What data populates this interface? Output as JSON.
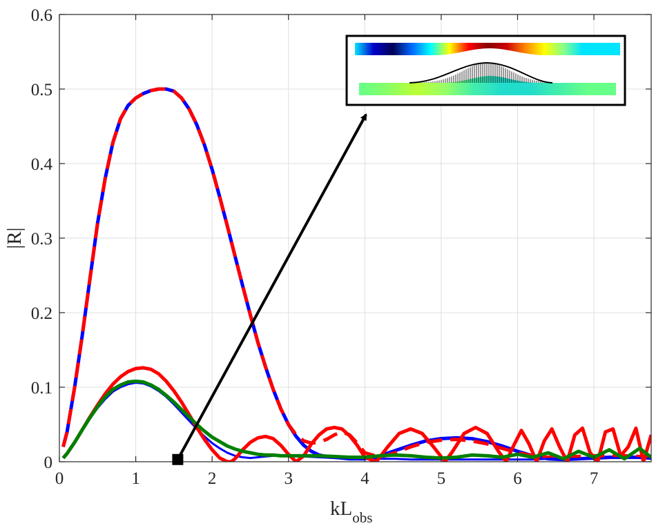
{
  "chart_data": {
    "type": "line",
    "title": "",
    "xlabel": "kL",
    "xlabel_subscript": "obs",
    "ylabel": "|R|",
    "xlim": [
      0,
      7.75
    ],
    "ylim": [
      0,
      0.6
    ],
    "xticks": [
      0,
      1,
      2,
      3,
      4,
      5,
      6,
      7
    ],
    "yticks": [
      0,
      0.1,
      0.2,
      0.3,
      0.4,
      0.5,
      0.6
    ],
    "xtick_labels": [
      "0",
      "1",
      "2",
      "3",
      "4",
      "5",
      "6",
      "7"
    ],
    "ytick_labels": [
      "0",
      "0.1",
      "0.2",
      "0.3",
      "0.4",
      "0.5",
      "0.6"
    ],
    "grid": true,
    "legend": "none",
    "series": [
      {
        "style": "dashed-blue-underlay",
        "color": "#0000ff",
        "x": [
          0.05,
          0.1,
          0.2,
          0.3,
          0.4,
          0.5,
          0.6,
          0.7,
          0.8,
          0.9,
          1.0,
          1.1,
          1.2,
          1.3,
          1.4,
          1.5,
          1.6,
          1.7,
          1.8,
          1.9,
          2.0,
          2.1,
          2.2,
          2.3,
          2.4,
          2.5,
          2.6,
          2.7,
          2.8,
          2.9,
          3.0,
          3.1,
          3.2,
          3.3,
          3.4,
          3.5,
          3.6,
          3.7,
          3.8,
          3.9,
          4.0,
          4.2,
          4.4,
          4.6,
          4.8,
          5.0,
          5.2,
          5.4,
          5.6,
          5.8,
          6.0,
          6.2,
          6.4,
          6.6,
          6.8,
          7.0,
          7.2,
          7.4,
          7.6,
          7.75
        ],
        "y": [
          0.02,
          0.04,
          0.1,
          0.17,
          0.245,
          0.32,
          0.38,
          0.428,
          0.46,
          0.478,
          0.488,
          0.494,
          0.498,
          0.5,
          0.5,
          0.497,
          0.488,
          0.473,
          0.452,
          0.425,
          0.392,
          0.355,
          0.316,
          0.276,
          0.236,
          0.197,
          0.16,
          0.127,
          0.097,
          0.071,
          0.05,
          0.034,
          0.022,
          0.014,
          0.009,
          0.007,
          0.006,
          0.005,
          0.004,
          0.004,
          0.004,
          0.008,
          0.015,
          0.022,
          0.028,
          0.031,
          0.032,
          0.031,
          0.027,
          0.021,
          0.014,
          0.008,
          0.004,
          0.003,
          0.004,
          0.005,
          0.006,
          0.006,
          0.006,
          0.005
        ]
      },
      {
        "style": "dashed",
        "color": "#ff0000",
        "x": [
          0.05,
          0.1,
          0.2,
          0.3,
          0.4,
          0.5,
          0.6,
          0.7,
          0.8,
          0.9,
          1.0,
          1.1,
          1.2,
          1.3,
          1.4,
          1.5,
          1.6,
          1.7,
          1.8,
          1.9,
          2.0,
          2.1,
          2.2,
          2.3,
          2.4,
          2.5,
          2.6,
          2.7,
          2.8,
          2.9,
          3.0,
          3.1,
          3.2,
          3.3,
          3.4,
          3.5,
          3.6,
          3.7,
          3.8,
          3.9,
          4.0,
          4.2,
          4.4,
          4.6,
          4.8,
          5.0,
          5.2,
          5.4,
          5.6,
          5.8,
          6.0,
          6.2,
          6.4,
          6.6,
          6.8,
          7.0,
          7.2,
          7.4,
          7.6,
          7.75
        ],
        "y": [
          0.02,
          0.04,
          0.1,
          0.17,
          0.245,
          0.32,
          0.38,
          0.428,
          0.46,
          0.478,
          0.488,
          0.494,
          0.498,
          0.5,
          0.5,
          0.497,
          0.488,
          0.473,
          0.452,
          0.425,
          0.392,
          0.355,
          0.316,
          0.276,
          0.236,
          0.197,
          0.16,
          0.127,
          0.097,
          0.071,
          0.05,
          0.036,
          0.028,
          0.025,
          0.026,
          0.03,
          0.036,
          0.04,
          0.036,
          0.025,
          0.012,
          0.006,
          0.012,
          0.02,
          0.026,
          0.029,
          0.03,
          0.028,
          0.024,
          0.018,
          0.012,
          0.008,
          0.006,
          0.006,
          0.007,
          0.008,
          0.008,
          0.008,
          0.007,
          0.006
        ]
      },
      {
        "style": "solid",
        "color": "#0000ff",
        "x": [
          0.05,
          0.1,
          0.2,
          0.3,
          0.4,
          0.5,
          0.6,
          0.7,
          0.8,
          0.9,
          1.0,
          1.1,
          1.2,
          1.3,
          1.4,
          1.5,
          1.6,
          1.7,
          1.8,
          1.9,
          2.0,
          2.1,
          2.2,
          2.3,
          2.4,
          2.5,
          2.6,
          2.7,
          2.8,
          2.9,
          3.0,
          3.2,
          3.4,
          3.6,
          3.8,
          4.0,
          4.2,
          4.4,
          4.6,
          4.8,
          5.0,
          5.2,
          5.4,
          5.6,
          5.8,
          6.0,
          6.2,
          6.4,
          6.6,
          6.8,
          7.0,
          7.2,
          7.4,
          7.6,
          7.75
        ],
        "y": [
          0.005,
          0.011,
          0.026,
          0.042,
          0.058,
          0.072,
          0.084,
          0.094,
          0.1,
          0.104,
          0.106,
          0.105,
          0.101,
          0.095,
          0.087,
          0.077,
          0.066,
          0.055,
          0.044,
          0.034,
          0.025,
          0.018,
          0.012,
          0.008,
          0.006,
          0.005,
          0.006,
          0.007,
          0.008,
          0.008,
          0.008,
          0.007,
          0.006,
          0.005,
          0.004,
          0.004,
          0.004,
          0.004,
          0.003,
          0.003,
          0.003,
          0.003,
          0.003,
          0.003,
          0.003,
          0.003,
          0.003,
          0.004,
          0.004,
          0.004,
          0.004,
          0.005,
          0.005,
          0.005,
          0.004
        ]
      },
      {
        "style": "solid",
        "color": "#ff0000",
        "x": [
          0.05,
          0.1,
          0.2,
          0.3,
          0.4,
          0.5,
          0.6,
          0.7,
          0.8,
          0.9,
          1.0,
          1.1,
          1.2,
          1.3,
          1.4,
          1.5,
          1.6,
          1.7,
          1.8,
          1.9,
          2.0,
          2.1,
          2.2,
          2.25,
          2.3,
          2.4,
          2.5,
          2.6,
          2.7,
          2.8,
          2.9,
          3.0,
          3.1,
          3.2,
          3.3,
          3.4,
          3.5,
          3.6,
          3.7,
          3.8,
          3.9,
          4.0,
          4.15,
          4.3,
          4.45,
          4.6,
          4.75,
          4.9,
          5.05,
          5.15,
          5.3,
          5.45,
          5.6,
          5.75,
          5.85,
          5.95,
          6.05,
          6.15,
          6.25,
          6.35,
          6.45,
          6.55,
          6.65,
          6.75,
          6.85,
          6.95,
          7.05,
          7.15,
          7.25,
          7.35,
          7.45,
          7.55,
          7.65,
          7.75
        ],
        "y": [
          0.005,
          0.011,
          0.026,
          0.043,
          0.06,
          0.076,
          0.091,
          0.104,
          0.114,
          0.121,
          0.125,
          0.126,
          0.124,
          0.118,
          0.108,
          0.095,
          0.08,
          0.063,
          0.046,
          0.03,
          0.016,
          0.005,
          0.0,
          0.0,
          0.004,
          0.016,
          0.026,
          0.032,
          0.034,
          0.031,
          0.022,
          0.01,
          0.0,
          0.008,
          0.024,
          0.036,
          0.044,
          0.046,
          0.044,
          0.035,
          0.022,
          0.006,
          0.0,
          0.02,
          0.038,
          0.044,
          0.038,
          0.02,
          0.0,
          0.014,
          0.038,
          0.046,
          0.038,
          0.014,
          0.0,
          0.022,
          0.042,
          0.024,
          0.0,
          0.028,
          0.044,
          0.02,
          0.0,
          0.036,
          0.045,
          0.012,
          0.0,
          0.04,
          0.044,
          0.008,
          0.02,
          0.045,
          0.0,
          0.036
        ]
      },
      {
        "style": "solid",
        "color": "#008000",
        "x": [
          0.05,
          0.1,
          0.2,
          0.3,
          0.4,
          0.5,
          0.6,
          0.7,
          0.8,
          0.9,
          1.0,
          1.1,
          1.2,
          1.3,
          1.4,
          1.5,
          1.6,
          1.7,
          1.8,
          1.9,
          2.0,
          2.1,
          2.2,
          2.3,
          2.4,
          2.5,
          2.6,
          2.7,
          2.8,
          2.9,
          3.0,
          3.2,
          3.4,
          3.6,
          3.8,
          4.0,
          4.2,
          4.4,
          4.6,
          4.8,
          5.0,
          5.2,
          5.4,
          5.6,
          5.8,
          6.0,
          6.2,
          6.4,
          6.6,
          6.8,
          7.0,
          7.2,
          7.4,
          7.6,
          7.75
        ],
        "y": [
          0.005,
          0.011,
          0.026,
          0.043,
          0.059,
          0.074,
          0.087,
          0.097,
          0.103,
          0.107,
          0.108,
          0.107,
          0.103,
          0.097,
          0.089,
          0.08,
          0.07,
          0.06,
          0.05,
          0.041,
          0.033,
          0.027,
          0.021,
          0.017,
          0.014,
          0.012,
          0.01,
          0.009,
          0.009,
          0.008,
          0.008,
          0.008,
          0.008,
          0.007,
          0.006,
          0.006,
          0.008,
          0.009,
          0.008,
          0.006,
          0.005,
          0.006,
          0.009,
          0.008,
          0.006,
          0.01,
          0.006,
          0.012,
          0.004,
          0.014,
          0.006,
          0.016,
          0.004,
          0.018,
          0.006
        ]
      }
    ],
    "annotation": {
      "marker": "filled-square",
      "marker_at": [
        1.55,
        0.003
      ],
      "arrow_to": "inset",
      "inset": {
        "top_strip_gradient": [
          "#00e5ff",
          "#0000cc",
          "#000055",
          "#0066ff",
          "#00ffff",
          "#ffff00",
          "#ff0000",
          "#880000",
          "#cc0000",
          "#ff8800",
          "#ffff00",
          "#88ff88",
          "#00e5ff",
          "#00e5ff",
          "#00e5ff"
        ],
        "bottom_strip_gradient": [
          "#66ff88",
          "#88ff66",
          "#bbff33",
          "#99ff66",
          "#44eeaa",
          "#22ddcc",
          "#22ddcc",
          "#44eeaa",
          "#66ff88",
          "#66ff88"
        ],
        "hatched_bump": true
      }
    }
  }
}
